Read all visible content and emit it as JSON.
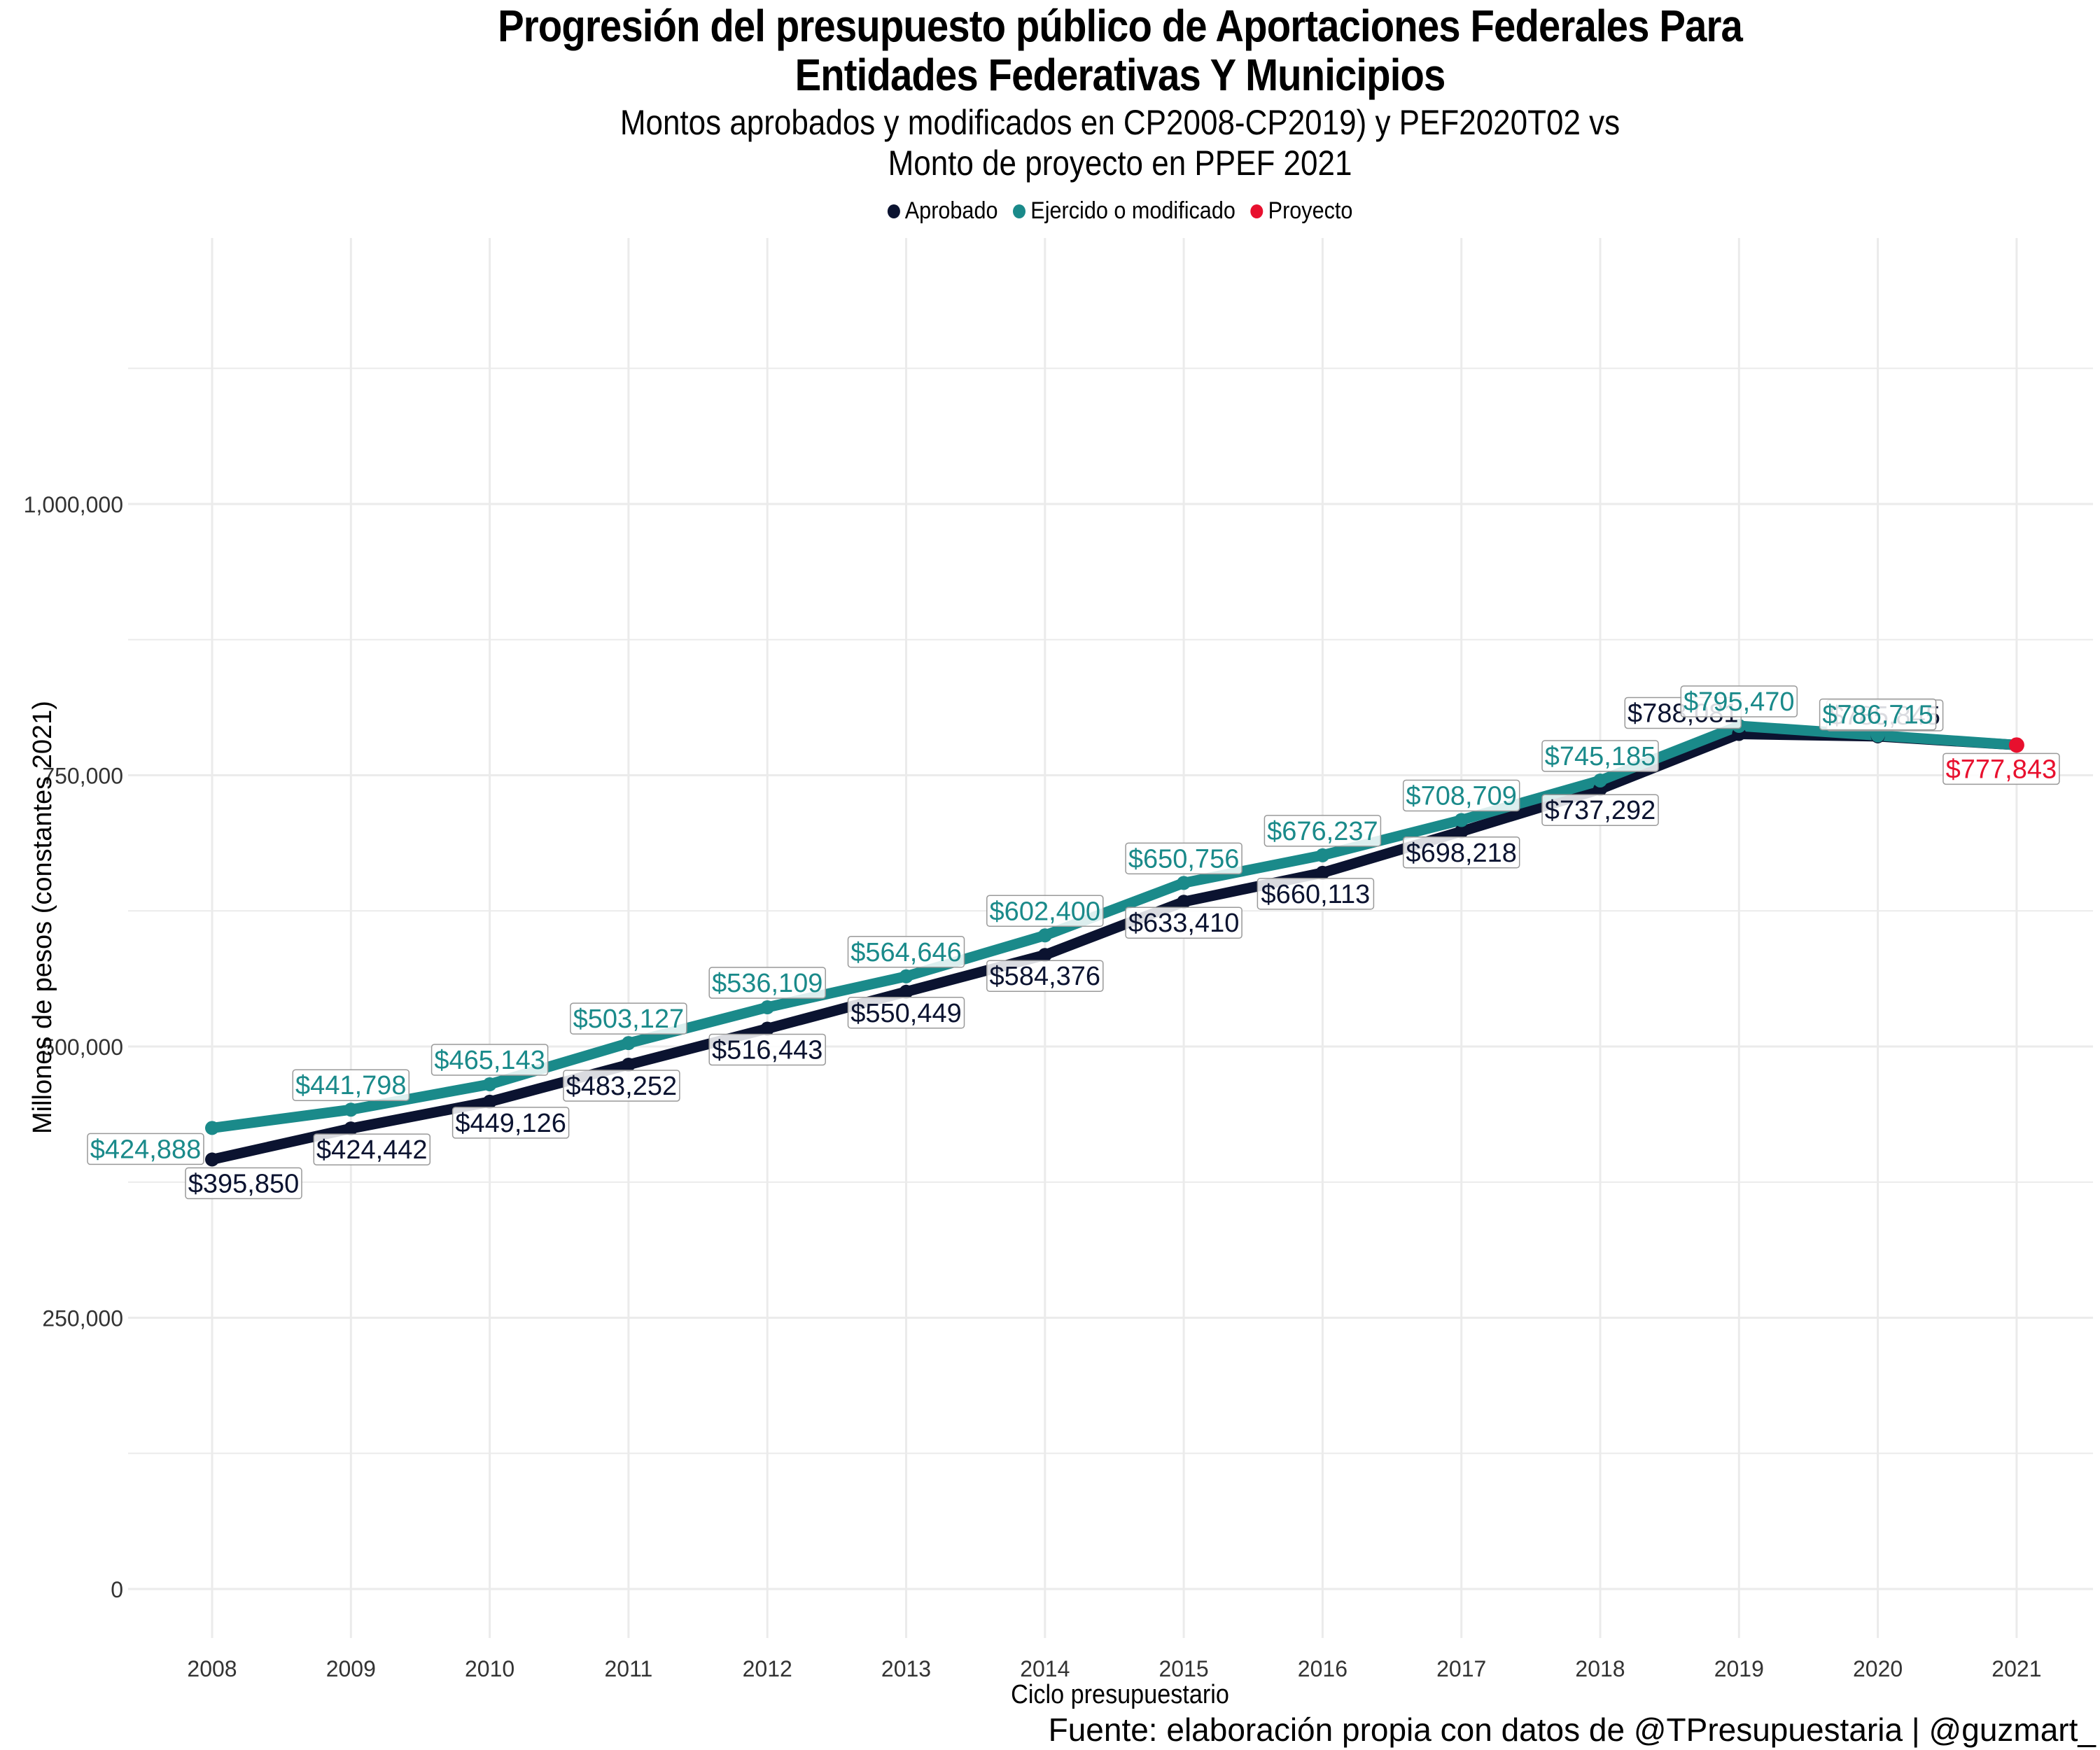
{
  "title_line1": "Progresión del presupuesto público de Aportaciones Federales Para",
  "title_line2": "Entidades Federativas Y Municipios",
  "subtitle_line1": "Montos aprobados y modificados en CP2008-CP2019) y PEF2020T02 vs",
  "subtitle_line2": "Monto de proyecto en PPEF 2021",
  "source": "Fuente: elaboración propia con datos de @TPresupuestaria | @guzmart_",
  "colors": {
    "aprobado": "#0b1330",
    "modificado": "#1a8a8a",
    "proyecto": "#e8102e",
    "grid": "#ebebeb"
  },
  "chart_data": {
    "type": "line",
    "xlabel": "Ciclo presupuestario",
    "ylabel": "Millones de pesos (constantes 2021)",
    "x": [
      2008,
      2009,
      2010,
      2011,
      2012,
      2013,
      2014,
      2015,
      2016,
      2017,
      2018,
      2019,
      2020,
      2021
    ],
    "ylim": [
      0,
      1250000
    ],
    "yticks": [
      0,
      250000,
      500000,
      750000,
      1000000
    ],
    "ytick_labels": [
      "0",
      "250,000",
      "500,000",
      "750,000",
      "1,000,000"
    ],
    "grid": true,
    "legend_position": "top",
    "series": [
      {
        "name": "Aprobado",
        "x": [
          2008,
          2009,
          2010,
          2011,
          2012,
          2013,
          2014,
          2015,
          2016,
          2017,
          2018,
          2019,
          2020
        ],
        "values": [
          395850,
          424442,
          449126,
          483252,
          516443,
          550449,
          584376,
          633410,
          660113,
          698218,
          737292,
          788081,
          785845
        ],
        "labels": [
          "$395,850",
          "$424,442",
          "$449,126",
          "$483,252",
          "$516,443",
          "$550,449",
          "$584,376",
          "$633,410",
          "$660,113",
          "$698,218",
          "$737,292",
          "$788,081",
          "$785,845"
        ]
      },
      {
        "name": "Ejercido o modificado",
        "x": [
          2008,
          2009,
          2010,
          2011,
          2012,
          2013,
          2014,
          2015,
          2016,
          2017,
          2018,
          2019,
          2020
        ],
        "values": [
          424888,
          441798,
          465143,
          503127,
          536109,
          564646,
          602400,
          650756,
          676237,
          708709,
          745185,
          795470,
          786715
        ],
        "labels": [
          "$424,888",
          "$441,798",
          "$465,143",
          "$503,127",
          "$536,109",
          "$564,646",
          "$602,400",
          "$650,756",
          "$676,237",
          "$708,709",
          "$745,185",
          "$795,470",
          "$786,715"
        ]
      },
      {
        "name": "Proyecto",
        "x": [
          2021
        ],
        "values": [
          777843
        ],
        "labels": [
          "$777,843"
        ]
      }
    ]
  }
}
